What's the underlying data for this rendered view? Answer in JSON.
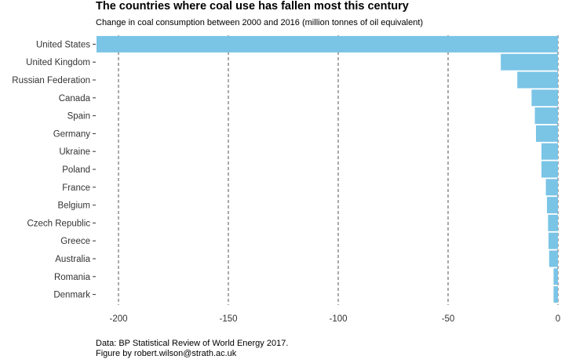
{
  "chart_data": {
    "type": "bar",
    "orientation": "horizontal",
    "title": "The countries where coal use has fallen most this century",
    "subtitle": "Change in coal consumption between 2000 and 2016 (million tonnes of oil equivalent)",
    "xlabel": "",
    "ylabel": "",
    "xlim": [
      -210,
      0
    ],
    "xticks": [
      -200,
      -150,
      -100,
      -50,
      0
    ],
    "grid": "vertical dashed",
    "legend": "none",
    "bar_color": "#7ac4e6",
    "categories": [
      "United States",
      "United Kingdom",
      "Russian Federation",
      "Canada",
      "Spain",
      "Germany",
      "Ukraine",
      "Poland",
      "France",
      "Belgium",
      "Czech Republic",
      "Greece",
      "Australia",
      "Romania",
      "Denmark"
    ],
    "values": [
      -210,
      -26,
      -18.5,
      -12,
      -10.5,
      -10,
      -7.5,
      -7.5,
      -5.5,
      -5,
      -4.5,
      -4.3,
      -4,
      -2,
      -2
    ],
    "caption": [
      "Data: BP Statistical Review of World Energy 2017.",
      "Figure by robert.wilson@strath.ac.uk"
    ]
  }
}
